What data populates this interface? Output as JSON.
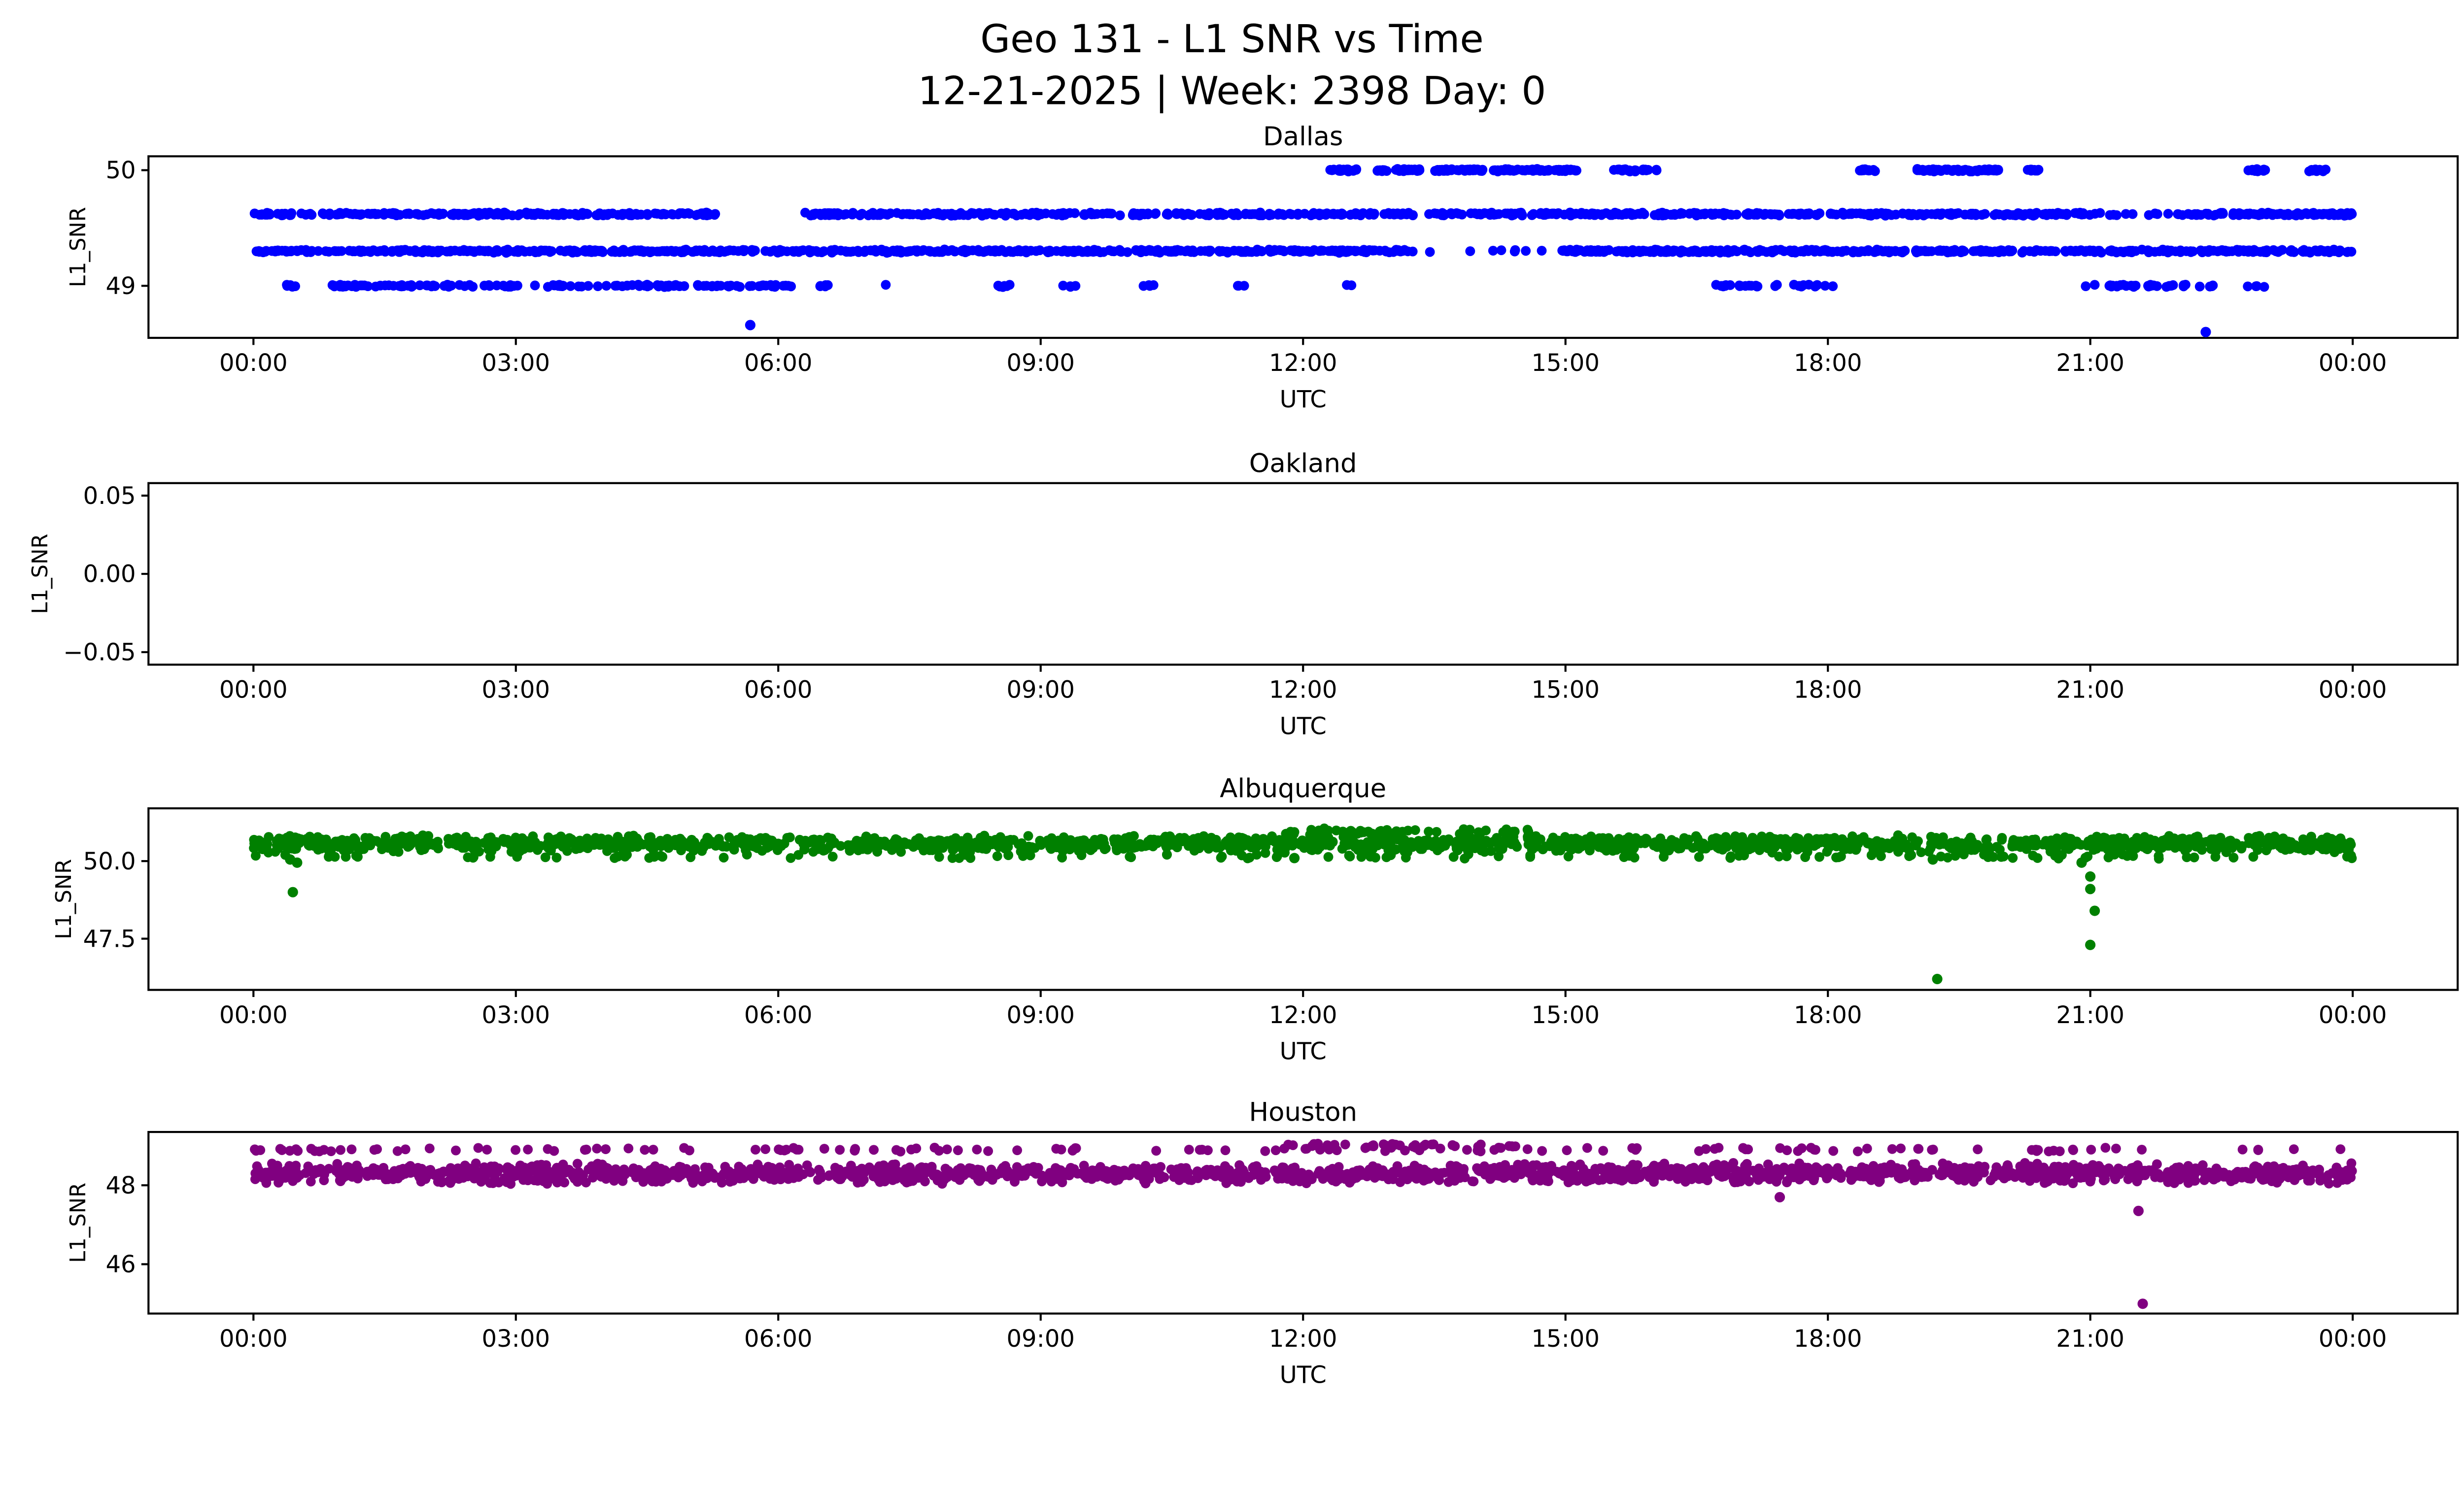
{
  "chart_data": {
    "type": "scatter",
    "title": "Geo 131 - L1 SNR vs Time",
    "subtitle": "12-21-2025 | Week: 2398 Day: 0",
    "xlabel": "UTC",
    "ylabel": "L1_SNR",
    "xlim": [
      -1.2,
      25.2
    ],
    "x_ticks": [
      0,
      3,
      6,
      9,
      12,
      15,
      18,
      21,
      24
    ],
    "x_tick_labels": [
      "00:00",
      "03:00",
      "06:00",
      "09:00",
      "12:00",
      "15:00",
      "18:00",
      "21:00",
      "00:00"
    ],
    "subplots": [
      {
        "title": "Dallas",
        "color": "#0000ff",
        "ylim": [
          48.55,
          50.12
        ],
        "y_ticks": [
          49,
          50
        ],
        "y_tick_labels": [
          "49",
          "50"
        ],
        "bands": [
          {
            "value": 49.62,
            "spread": 0.015,
            "points": 900,
            "segments": [
              [
                0,
                5.35
              ],
              [
                6.3,
                21.05
              ],
              [
                22.1,
                24
              ]
            ]
          },
          {
            "value": 49.62,
            "spread": 0.015,
            "points": 14,
            "segments": [
              [
                21.05,
                22.1
              ]
            ]
          },
          {
            "value": 49.3,
            "spread": 0.015,
            "points": 1000,
            "segments": [
              [
                0,
                13.3
              ],
              [
                14.95,
                24
              ]
            ]
          },
          {
            "value": 49.3,
            "spread": 0.015,
            "points": 8,
            "segments": [
              [
                13.3,
                14.95
              ]
            ]
          },
          {
            "value": 50.0,
            "spread": 0.012,
            "points": 300,
            "segments": [
              [
                12.3,
                12.62
              ],
              [
                12.85,
                13.35
              ],
              [
                13.5,
                15.15
              ],
              [
                15.55,
                16.05
              ],
              [
                18.35,
                18.55
              ],
              [
                19.0,
                19.95
              ],
              [
                20.25,
                20.45
              ],
              [
                22.8,
                23.0
              ],
              [
                23.5,
                23.7
              ]
            ]
          },
          {
            "value": 49.0,
            "spread": 0.012,
            "points": 230,
            "segments": [
              [
                0.35,
                0.5
              ],
              [
                0.8,
                6.15
              ],
              [
                6.45,
                6.6
              ],
              [
                7.15,
                7.3
              ],
              [
                8.5,
                8.65
              ],
              [
                9.25,
                9.4
              ],
              [
                10.15,
                10.3
              ],
              [
                11.25,
                11.35
              ],
              [
                12.45,
                12.6
              ],
              [
                16.7,
                17.45
              ],
              [
                17.6,
                18.1
              ],
              [
                18.3,
                18.4
              ],
              [
                20.9,
                22.45
              ],
              [
                22.8,
                23.0
              ]
            ]
          }
        ],
        "outliers": [
          [
            5.68,
            48.66
          ],
          [
            22.32,
            48.6
          ]
        ]
      },
      {
        "title": "Oakland",
        "color": "#1f77b4",
        "ylim": [
          -0.058,
          0.058
        ],
        "y_ticks": [
          -0.05,
          0.0,
          0.05
        ],
        "y_tick_labels": [
          "−0.05",
          "0.00",
          "0.05"
        ],
        "bands": [],
        "outliers": []
      },
      {
        "title": "Albuquerque",
        "color": "#008000",
        "ylim": [
          45.85,
          51.7
        ],
        "y_ticks": [
          47.5,
          50.0
        ],
        "y_tick_labels": [
          "47.5",
          "50.0"
        ],
        "bands": [
          {
            "value": 50.55,
            "spread": 0.3,
            "points": 1600,
            "segments": [
              [
                0,
                24
              ]
            ]
          },
          {
            "value": 50.15,
            "spread": 0.08,
            "points": 120,
            "segments": [
              [
                0,
                24
              ]
            ]
          },
          {
            "value": 50.95,
            "spread": 0.12,
            "points": 60,
            "segments": [
              [
                11.8,
                14.6
              ]
            ]
          }
        ],
        "outliers": [
          [
            0.42,
            50.05
          ],
          [
            0.45,
            49.0
          ],
          [
            0.5,
            49.95
          ],
          [
            11.9,
            50.1
          ],
          [
            13.0,
            50.2
          ],
          [
            19.2,
            50.05
          ],
          [
            19.25,
            46.2
          ],
          [
            20.9,
            49.95
          ],
          [
            21.0,
            49.5
          ],
          [
            21.0,
            49.1
          ],
          [
            21.05,
            48.4
          ],
          [
            21.0,
            47.3
          ]
        ]
      },
      {
        "title": "Houston",
        "color": "#800080",
        "ylim": [
          44.75,
          49.35
        ],
        "y_ticks": [
          46,
          48
        ],
        "y_tick_labels": [
          "46",
          "48"
        ],
        "bands": [
          {
            "value": 48.3,
            "spread": 0.28,
            "points": 1700,
            "segments": [
              [
                0,
                24
              ]
            ]
          },
          {
            "value": 48.9,
            "spread": 0.06,
            "points": 140,
            "segments": [
              [
                0,
                24
              ]
            ]
          },
          {
            "value": 49.0,
            "spread": 0.07,
            "points": 40,
            "segments": [
              [
                11.8,
                14.5
              ]
            ]
          }
        ],
        "outliers": [
          [
            21.6,
            45.0
          ],
          [
            21.55,
            47.35
          ],
          [
            17.45,
            47.7
          ]
        ]
      }
    ]
  }
}
